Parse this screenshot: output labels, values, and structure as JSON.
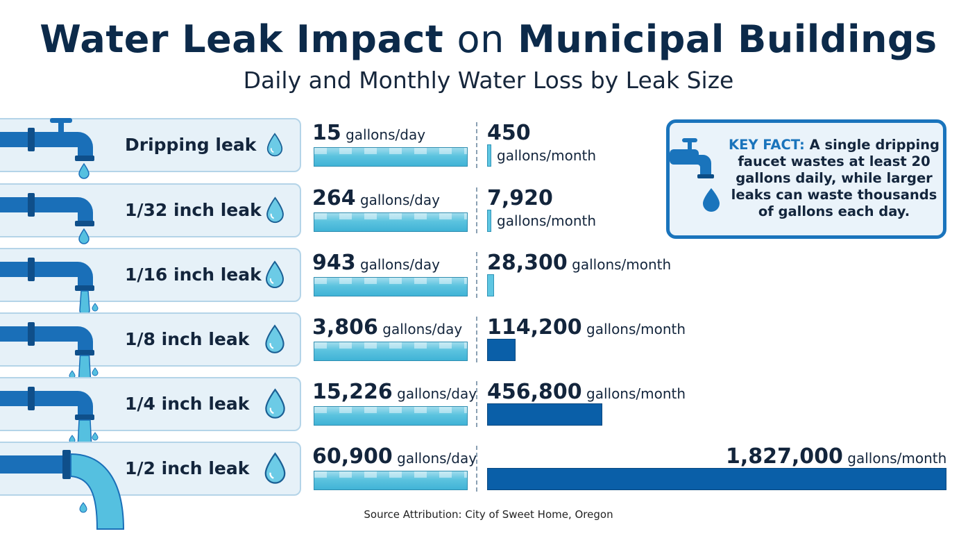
{
  "header": {
    "title_part1": "Water Leak Impact",
    "title_part2": "on",
    "title_part3": "Municipal Buildings",
    "subtitle": "Daily and Monthly Water Loss by Leak Size"
  },
  "colors": {
    "title": "#0c2a4a",
    "panel_bg": "#e6f1f8",
    "light_bar": "#5ec6e2",
    "dark_bar": "#0a5fa8",
    "accent": "#1a74bc"
  },
  "key_fact": {
    "label": "KEY FACT:",
    "text": "A single dripping faucet wastes at least 20 gallons daily, while larger leaks can waste thousands of gallons each day.",
    "icon": "faucet-drop-icon"
  },
  "source": "Source Attribution: City of Sweet Home, Oregon",
  "chart_data": {
    "type": "bar",
    "title": "Water Leak Impact on Municipal Buildings",
    "subtitle": "Daily and Monthly Water Loss by Leak Size",
    "categories": [
      "Dripping leak",
      "1/32 inch leak",
      "1/16 inch leak",
      "1/8 inch leak",
      "1/4 inch leak",
      "1/2 inch leak"
    ],
    "series": [
      {
        "name": "gallons/day",
        "values": [
          15,
          264,
          943,
          3806,
          15226,
          60900
        ],
        "labels": [
          "15",
          "264",
          "943",
          "3,806",
          "15,226",
          "60,900"
        ],
        "unit": "gallons/day"
      },
      {
        "name": "gallons/month",
        "values": [
          450,
          7920,
          28300,
          114200,
          456800,
          1827000
        ],
        "labels": [
          "450",
          "7,920",
          "28,300",
          "114,200",
          "456,800",
          "1,827,000"
        ],
        "unit": "gallons/month"
      }
    ]
  }
}
